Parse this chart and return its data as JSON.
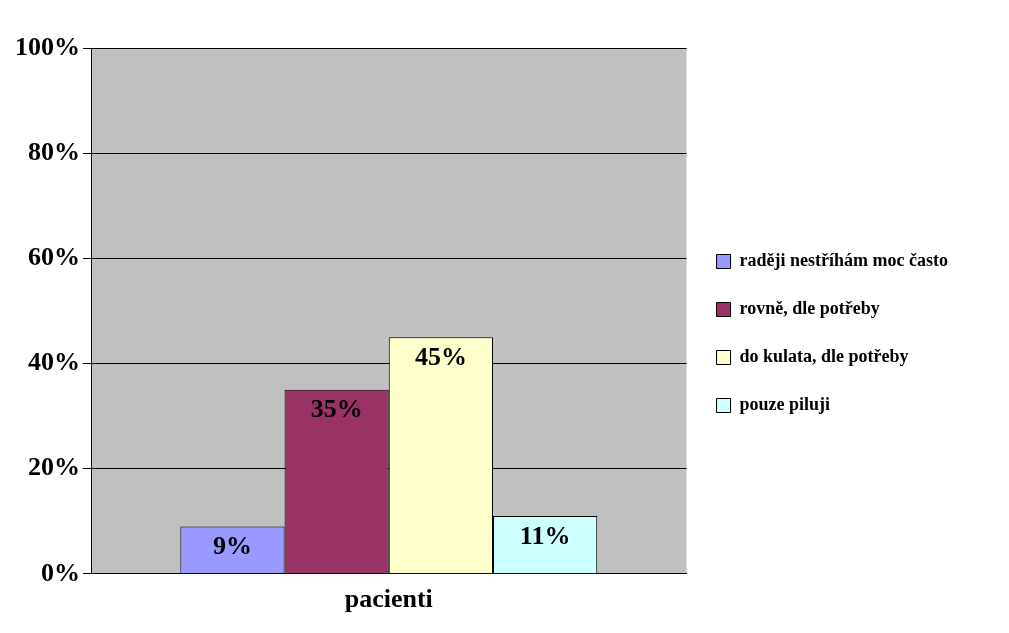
{
  "chart_data": {
    "type": "bar",
    "categories": [
      "pacienti"
    ],
    "series": [
      {
        "name": "raději nestříhám moc často",
        "color": "#9999ff",
        "values": [
          9
        ],
        "value_labels": [
          "9%"
        ]
      },
      {
        "name": "rovně, dle potřeby",
        "color": "#993366",
        "values": [
          35
        ],
        "value_labels": [
          "35%"
        ]
      },
      {
        "name": "do kulata, dle potřeby",
        "color": "#ffffcc",
        "values": [
          45
        ],
        "value_labels": [
          "45%"
        ]
      },
      {
        "name": "pouze piluji",
        "color": "#ccffff",
        "values": [
          11
        ],
        "value_labels": [
          "11%"
        ]
      }
    ],
    "ylim": [
      0,
      100
    ],
    "yticks": [
      {
        "value": 0,
        "label": "0%"
      },
      {
        "value": 20,
        "label": "20%"
      },
      {
        "value": 40,
        "label": "40%"
      },
      {
        "value": 60,
        "label": "60%"
      },
      {
        "value": 80,
        "label": "80%"
      },
      {
        "value": 100,
        "label": "100%"
      }
    ],
    "grid": "y",
    "legend": "right"
  }
}
